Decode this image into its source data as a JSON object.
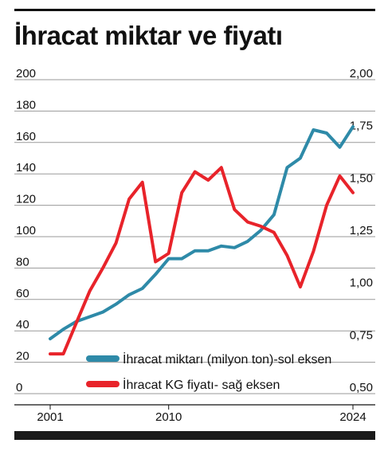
{
  "title": "İhracat miktar ve fiyatı",
  "chart_data": {
    "type": "line",
    "title": "İhracat miktar ve fiyatı",
    "x": [
      2001,
      2002,
      2003,
      2004,
      2005,
      2006,
      2007,
      2008,
      2009,
      2010,
      2011,
      2012,
      2013,
      2014,
      2015,
      2016,
      2017,
      2018,
      2019,
      2020,
      2021,
      2022,
      2023,
      2024
    ],
    "x_tick_labels": [
      "2001",
      "2010",
      "2024"
    ],
    "x_tick_values": [
      2001,
      2010,
      2024
    ],
    "left_axis": {
      "ylim": [
        0,
        200
      ],
      "ticks": [
        0,
        20,
        40,
        60,
        80,
        100,
        120,
        140,
        160,
        180,
        200
      ],
      "tick_labels": [
        "0",
        "20",
        "40",
        "60",
        "80",
        "100",
        "120",
        "140",
        "160",
        "180",
        "200"
      ]
    },
    "right_axis": {
      "ylim": [
        0.5,
        2.0
      ],
      "ticks": [
        0.5,
        0.75,
        1.0,
        1.25,
        1.5,
        1.75,
        2.0
      ],
      "tick_labels": [
        "0,50",
        "0,75",
        "1,00",
        "1,25",
        "1,50",
        "1,75",
        "2,00"
      ]
    },
    "grid": true,
    "legend_position": "bottom-right",
    "series": [
      {
        "name": "İhracat miktarı (milyon ton)-sol eksen",
        "axis": "left",
        "color": "#2e8aa8",
        "values": [
          35,
          41,
          46,
          49,
          52,
          57,
          63,
          67,
          76,
          86,
          86,
          91,
          91,
          94,
          93,
          97,
          104,
          114,
          144,
          150,
          168,
          166,
          157,
          170
        ]
      },
      {
        "name": "İhracat KG fiyatı- sağ eksen",
        "axis": "right",
        "color": "#e8232a",
        "values": [
          0.69,
          0.69,
          0.84,
          0.99,
          1.1,
          1.22,
          1.43,
          1.51,
          1.13,
          1.17,
          1.46,
          1.56,
          1.52,
          1.58,
          1.38,
          1.32,
          1.3,
          1.27,
          1.16,
          1.01,
          1.18,
          1.4,
          1.54,
          1.46
        ]
      }
    ]
  }
}
